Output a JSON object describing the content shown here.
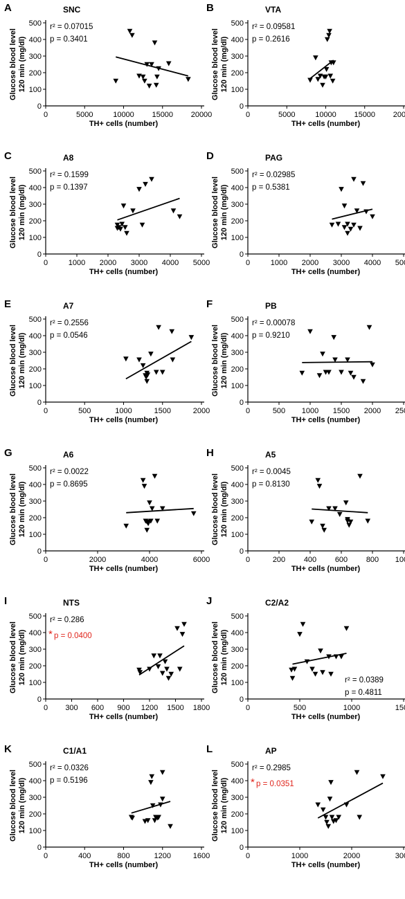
{
  "chart_data": [
    {
      "label": "A",
      "title": "SNC",
      "type": "scatter",
      "xlabel": "TH+ cells (number)",
      "ylabel": [
        "Glucose blood level",
        "120 min (mg/dl)"
      ],
      "xlim": [
        0,
        20000
      ],
      "ylim": [
        0,
        500
      ],
      "xticks": [
        0,
        5000,
        10000,
        15000,
        20000
      ],
      "yticks": [
        0,
        100,
        200,
        300,
        400,
        500
      ],
      "r2": "r² = 0.07015",
      "p": "p = 0.3401",
      "significant": false,
      "points": [
        [
          9000,
          150
        ],
        [
          10800,
          450
        ],
        [
          11100,
          425
        ],
        [
          12000,
          180
        ],
        [
          12500,
          175
        ],
        [
          12700,
          150
        ],
        [
          13000,
          250
        ],
        [
          13300,
          120
        ],
        [
          13600,
          250
        ],
        [
          14000,
          380
        ],
        [
          14200,
          125
        ],
        [
          14500,
          225
        ],
        [
          14300,
          175
        ],
        [
          15800,
          255
        ],
        [
          18300,
          160
        ]
      ],
      "fit": [
        [
          9000,
          295
        ],
        [
          18300,
          180
        ]
      ]
    },
    {
      "label": "B",
      "title": "VTA",
      "type": "scatter",
      "xlabel": "TH+ cells (number)",
      "ylabel": [
        "Glucose blood level",
        "120 min (mg/dl)"
      ],
      "xlim": [
        0,
        20000
      ],
      "ylim": [
        0,
        500
      ],
      "xticks": [
        0,
        5000,
        10000,
        15000,
        20000
      ],
      "yticks": [
        0,
        100,
        200,
        300,
        400,
        500
      ],
      "r2": "r² = 0.09581",
      "p": "p = 0.2616",
      "significant": false,
      "points": [
        [
          8000,
          155
        ],
        [
          8700,
          290
        ],
        [
          9000,
          160
        ],
        [
          9300,
          180
        ],
        [
          9600,
          125
        ],
        [
          9800,
          175
        ],
        [
          10000,
          175
        ],
        [
          10100,
          220
        ],
        [
          10200,
          400
        ],
        [
          10400,
          425
        ],
        [
          10500,
          450
        ],
        [
          10600,
          180
        ],
        [
          10700,
          260
        ],
        [
          10900,
          150
        ],
        [
          11000,
          260
        ]
      ],
      "fit": [
        [
          8000,
          165
        ],
        [
          11000,
          275
        ]
      ]
    },
    {
      "label": "C",
      "title": "A8",
      "type": "scatter",
      "xlabel": "TH+ cells (number)",
      "ylabel": [
        "Glucose blood level",
        "120 min (mg/dl)"
      ],
      "xlim": [
        0,
        5000
      ],
      "ylim": [
        0,
        500
      ],
      "xticks": [
        0,
        1000,
        2000,
        3000,
        4000,
        5000
      ],
      "yticks": [
        0,
        100,
        200,
        300,
        400,
        500
      ],
      "r2": "r² = 0.1599",
      "p": "p = 0.1397",
      "significant": false,
      "points": [
        [
          2300,
          175
        ],
        [
          2350,
          160
        ],
        [
          2400,
          150
        ],
        [
          2450,
          180
        ],
        [
          2500,
          290
        ],
        [
          2550,
          160
        ],
        [
          2600,
          125
        ],
        [
          2800,
          260
        ],
        [
          3000,
          390
        ],
        [
          3100,
          175
        ],
        [
          3200,
          420
        ],
        [
          3400,
          450
        ],
        [
          4100,
          260
        ],
        [
          4300,
          225
        ],
        [
          2300,
          155
        ]
      ],
      "fit": [
        [
          2300,
          205
        ],
        [
          4300,
          335
        ]
      ]
    },
    {
      "label": "D",
      "title": "PAG",
      "type": "scatter",
      "xlabel": "TH+ cells (number)",
      "ylabel": [
        "Glucose blood level",
        "120 min (mg/dl)"
      ],
      "xlim": [
        0,
        5000
      ],
      "ylim": [
        0,
        500
      ],
      "xticks": [
        0,
        1000,
        2000,
        3000,
        4000,
        5000
      ],
      "yticks": [
        0,
        100,
        200,
        300,
        400,
        500
      ],
      "r2": "r² = 0.02985",
      "p": "p = 0.5381",
      "significant": false,
      "points": [
        [
          2700,
          175
        ],
        [
          2900,
          180
        ],
        [
          3000,
          390
        ],
        [
          3100,
          290
        ],
        [
          3100,
          160
        ],
        [
          3200,
          125
        ],
        [
          3300,
          150
        ],
        [
          3400,
          450
        ],
        [
          3400,
          175
        ],
        [
          3500,
          260
        ],
        [
          3600,
          155
        ],
        [
          3700,
          425
        ],
        [
          3800,
          255
        ],
        [
          4000,
          225
        ],
        [
          3200,
          180
        ]
      ],
      "fit": [
        [
          2700,
          210
        ],
        [
          4000,
          270
        ]
      ]
    },
    {
      "label": "E",
      "title": "A7",
      "type": "scatter",
      "xlabel": "TH+ cells (number)",
      "ylabel": [
        "Glucose blood level",
        "120 min (mg/dl)"
      ],
      "xlim": [
        0,
        2000
      ],
      "ylim": [
        0,
        500
      ],
      "xticks": [
        0,
        500,
        1000,
        1500,
        2000
      ],
      "yticks": [
        0,
        100,
        200,
        300,
        400,
        500
      ],
      "r2": "r² = 0.2556",
      "p": "p = 0.0546",
      "significant": false,
      "points": [
        [
          1030,
          260
        ],
        [
          1200,
          255
        ],
        [
          1250,
          220
        ],
        [
          1280,
          160
        ],
        [
          1290,
          150
        ],
        [
          1300,
          125
        ],
        [
          1300,
          175
        ],
        [
          1350,
          290
        ],
        [
          1420,
          180
        ],
        [
          1450,
          450
        ],
        [
          1500,
          180
        ],
        [
          1620,
          425
        ],
        [
          1630,
          255
        ],
        [
          1870,
          390
        ],
        [
          1310,
          165
        ]
      ],
      "fit": [
        [
          1030,
          140
        ],
        [
          1870,
          365
        ]
      ]
    },
    {
      "label": "F",
      "title": "PB",
      "type": "scatter",
      "xlabel": "TH+ cells (number)",
      "ylabel": [
        "Glucose blood level",
        "120 min (mg/dl)"
      ],
      "xlim": [
        0,
        2500
      ],
      "ylim": [
        0,
        500
      ],
      "xticks": [
        0,
        500,
        1000,
        1500,
        2000,
        2500
      ],
      "yticks": [
        0,
        100,
        200,
        300,
        400,
        500
      ],
      "r2": "r² = 0.00078",
      "p": "p = 0.9210",
      "significant": false,
      "points": [
        [
          870,
          175
        ],
        [
          1000,
          425
        ],
        [
          1150,
          160
        ],
        [
          1200,
          290
        ],
        [
          1250,
          180
        ],
        [
          1300,
          180
        ],
        [
          1380,
          390
        ],
        [
          1400,
          255
        ],
        [
          1500,
          180
        ],
        [
          1600,
          255
        ],
        [
          1650,
          175
        ],
        [
          1700,
          150
        ],
        [
          1850,
          125
        ],
        [
          1950,
          450
        ],
        [
          2000,
          225
        ]
      ],
      "fit": [
        [
          870,
          238
        ],
        [
          2000,
          243
        ]
      ]
    },
    {
      "label": "G",
      "title": "A6",
      "type": "scatter",
      "xlabel": "TH+ cells (number)",
      "ylabel": [
        "Glucose blood level",
        "120 min (mg/dl)"
      ],
      "xlim": [
        0,
        6000
      ],
      "ylim": [
        0,
        500
      ],
      "xticks": [
        0,
        2000,
        4000,
        6000
      ],
      "yticks": [
        0,
        100,
        200,
        300,
        400,
        500
      ],
      "r2": "r² = 0.0022",
      "p": "p = 0.8695",
      "significant": false,
      "points": [
        [
          3100,
          150
        ],
        [
          3750,
          425
        ],
        [
          3800,
          390
        ],
        [
          3850,
          180
        ],
        [
          3900,
          125
        ],
        [
          3950,
          175
        ],
        [
          4000,
          290
        ],
        [
          4050,
          180
        ],
        [
          4100,
          255
        ],
        [
          4200,
          450
        ],
        [
          4300,
          180
        ],
        [
          4500,
          255
        ],
        [
          5700,
          225
        ],
        [
          3900,
          175
        ],
        [
          3950,
          165
        ]
      ],
      "fit": [
        [
          3100,
          230
        ],
        [
          5700,
          255
        ]
      ]
    },
    {
      "label": "H",
      "title": "A5",
      "type": "scatter",
      "xlabel": "TH+ cells (number)",
      "ylabel": [
        "Glucose blood level",
        "120 min (mg/dl)"
      ],
      "xlim": [
        0,
        1000
      ],
      "ylim": [
        0,
        500
      ],
      "xticks": [
        0,
        200,
        400,
        600,
        800,
        1000
      ],
      "yticks": [
        0,
        100,
        200,
        300,
        400,
        500
      ],
      "r2": "r² = 0.0045",
      "p": "p = 0.8130",
      "significant": false,
      "points": [
        [
          410,
          175
        ],
        [
          450,
          425
        ],
        [
          460,
          390
        ],
        [
          480,
          150
        ],
        [
          490,
          125
        ],
        [
          520,
          255
        ],
        [
          560,
          255
        ],
        [
          590,
          220
        ],
        [
          630,
          290
        ],
        [
          640,
          180
        ],
        [
          650,
          155
        ],
        [
          660,
          175
        ],
        [
          720,
          450
        ],
        [
          770,
          180
        ],
        [
          640,
          190
        ]
      ],
      "fit": [
        [
          410,
          252
        ],
        [
          770,
          230
        ]
      ]
    },
    {
      "label": "I",
      "title": "NTS",
      "type": "scatter",
      "xlabel": "TH+ cells (number)",
      "ylabel": [
        "Glucose blood level",
        "120 min (mg/dl)"
      ],
      "xlim": [
        0,
        1800
      ],
      "ylim": [
        0,
        500
      ],
      "xticks": [
        0,
        300,
        600,
        900,
        1200,
        1500,
        1800
      ],
      "yticks": [
        0,
        100,
        200,
        300,
        400,
        500
      ],
      "r2": "r² = 0.286",
      "p": "p = 0.0400",
      "significant": true,
      "points": [
        [
          1080,
          175
        ],
        [
          1090,
          160
        ],
        [
          1200,
          180
        ],
        [
          1250,
          260
        ],
        [
          1300,
          195
        ],
        [
          1320,
          260
        ],
        [
          1350,
          155
        ],
        [
          1380,
          225
        ],
        [
          1400,
          180
        ],
        [
          1420,
          125
        ],
        [
          1450,
          150
        ],
        [
          1520,
          425
        ],
        [
          1550,
          180
        ],
        [
          1580,
          390
        ],
        [
          1600,
          450
        ]
      ],
      "fit": [
        [
          1080,
          145
        ],
        [
          1600,
          320
        ]
      ]
    },
    {
      "label": "J",
      "title": "C2/A2",
      "type": "scatter",
      "xlabel": "TH+ cells (number)",
      "ylabel": [
        "Glucose blood level",
        "120 min (mg/dl)"
      ],
      "xlim": [
        0,
        1500
      ],
      "ylim": [
        0,
        500
      ],
      "xticks": [
        0,
        500,
        1000,
        1500
      ],
      "yticks": [
        0,
        100,
        200,
        300,
        400,
        500
      ],
      "r2": "r² = 0.0389",
      "p": "p = 0.4811",
      "significant": false,
      "points": [
        [
          420,
          175
        ],
        [
          430,
          125
        ],
        [
          450,
          180
        ],
        [
          500,
          390
        ],
        [
          530,
          450
        ],
        [
          570,
          225
        ],
        [
          620,
          180
        ],
        [
          650,
          150
        ],
        [
          700,
          290
        ],
        [
          720,
          160
        ],
        [
          780,
          255
        ],
        [
          800,
          150
        ],
        [
          850,
          255
        ],
        [
          900,
          255
        ],
        [
          950,
          425
        ]
      ],
      "fit": [
        [
          430,
          210
        ],
        [
          950,
          275
        ]
      ]
    },
    {
      "label": "K",
      "title": "C1/A1",
      "type": "scatter",
      "xlabel": "TH+ cells (number)",
      "ylabel": [
        "Glucose blood level",
        "120 min (mg/dl)"
      ],
      "xlim": [
        0,
        1600
      ],
      "ylim": [
        0,
        500
      ],
      "xticks": [
        0,
        400,
        800,
        1200,
        1600
      ],
      "yticks": [
        0,
        100,
        200,
        300,
        400,
        500
      ],
      "r2": "r² = 0.0326",
      "p": "p = 0.5196",
      "significant": false,
      "points": [
        [
          880,
          180
        ],
        [
          890,
          175
        ],
        [
          1020,
          155
        ],
        [
          1050,
          160
        ],
        [
          1080,
          390
        ],
        [
          1090,
          425
        ],
        [
          1100,
          250
        ],
        [
          1120,
          160
        ],
        [
          1150,
          175
        ],
        [
          1160,
          180
        ],
        [
          1180,
          255
        ],
        [
          1200,
          290
        ],
        [
          1200,
          450
        ],
        [
          1280,
          125
        ],
        [
          1130,
          180
        ]
      ],
      "fit": [
        [
          880,
          205
        ],
        [
          1280,
          275
        ]
      ]
    },
    {
      "label": "L",
      "title": "AP",
      "type": "scatter",
      "xlabel": "TH+ cells (number)",
      "ylabel": [
        "Glucose blood level",
        "120 min (mg/dl)"
      ],
      "xlim": [
        0,
        3000
      ],
      "ylim": [
        0,
        500
      ],
      "xticks": [
        0,
        1000,
        2000,
        3000
      ],
      "yticks": [
        0,
        100,
        200,
        300,
        400,
        500
      ],
      "r2": "r² = 0.2985",
      "p": "p = 0.0351",
      "significant": true,
      "points": [
        [
          1350,
          255
        ],
        [
          1450,
          225
        ],
        [
          1500,
          180
        ],
        [
          1520,
          150
        ],
        [
          1550,
          125
        ],
        [
          1580,
          290
        ],
        [
          1600,
          390
        ],
        [
          1620,
          180
        ],
        [
          1650,
          155
        ],
        [
          1700,
          160
        ],
        [
          1750,
          180
        ],
        [
          1900,
          255
        ],
        [
          2100,
          450
        ],
        [
          2150,
          180
        ],
        [
          2600,
          425
        ]
      ],
      "fit": [
        [
          1350,
          175
        ],
        [
          2600,
          385
        ]
      ]
    }
  ]
}
